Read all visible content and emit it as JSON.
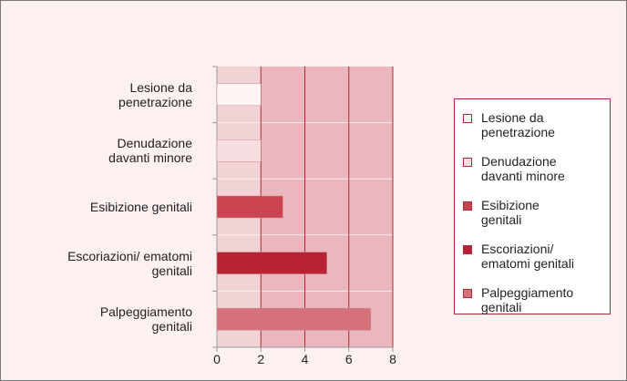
{
  "chart_data": {
    "type": "bar",
    "orientation": "horizontal",
    "categories": [
      "Lesione da\npenetrazione",
      "Denudazione\ndavanti minore",
      "Esibizione genitali",
      "Escoriazioni/ ematomi\ngenitali",
      "Palpeggiamento\ngenitali"
    ],
    "values": [
      2,
      2,
      3,
      5,
      7
    ],
    "colors": [
      "#fdf6f4",
      "#f7dfe1",
      "#c9444f",
      "#b92234",
      "#d4717b"
    ],
    "legend": [
      "Lesione da\npenetrazione",
      "Denudazione\ndavanti minore",
      "Esibizione\ngenitali",
      "Escoriazioni/\nematomi genitali",
      "Palpeggiamento\ngenitali"
    ],
    "xlim": [
      0,
      8
    ],
    "xticks": [
      0,
      2,
      4,
      6,
      8
    ],
    "grid": true
  }
}
